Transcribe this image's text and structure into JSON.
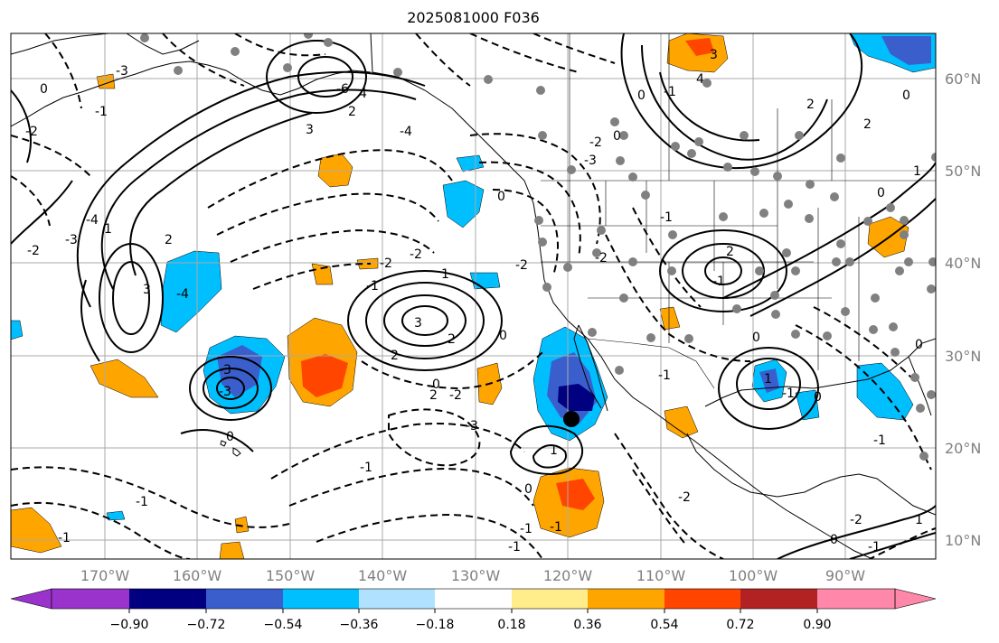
{
  "title": "2025081000 F036",
  "map": {
    "lon_labels": [
      "170°W",
      "160°W",
      "150°W",
      "140°W",
      "130°W",
      "120°W",
      "110°W",
      "100°W",
      "90°W"
    ],
    "lat_labels": [
      "60°N",
      "50°N",
      "40°N",
      "30°N",
      "20°N",
      "10°N"
    ],
    "lon_range": [
      -178,
      -78
    ],
    "lat_range": [
      8,
      65
    ],
    "gridlines": true,
    "contour_color": "#000000",
    "gray_dot_color": "#808080"
  },
  "colorbar": {
    "tick_labels": [
      "−0.90",
      "−0.72",
      "−0.54",
      "−0.36",
      "−0.18",
      "0.18",
      "0.36",
      "0.54",
      "0.72",
      "0.90"
    ],
    "colors": [
      "#9933cc",
      "#000080",
      "#3a5fcd",
      "#00bfff",
      "#b0e2ff",
      "#ffffff",
      "#ffec8b",
      "#ffa500",
      "#ff4500",
      "#b22222",
      "#ff88aa"
    ]
  },
  "contour_labels": [
    "-3",
    "0",
    "-2",
    "-1",
    "-2",
    "-4",
    "-3",
    "1",
    "2",
    "3",
    "-4",
    "4",
    "-6",
    "2",
    "3",
    "-4",
    "-2",
    "-2",
    "-1",
    "-3",
    "0",
    "2",
    "-3",
    "1",
    "2",
    "3",
    "-1",
    "-2",
    "-3",
    "2",
    "-1",
    "-2",
    "0",
    "0",
    "-1",
    "1",
    "-1",
    "-2",
    "-3",
    "0",
    "-1",
    "0",
    "3",
    "4",
    "2",
    "0",
    "1",
    "2",
    "0",
    "2",
    "-1",
    "-2",
    "0",
    "0",
    "1",
    "-1",
    "0",
    "-1",
    "-2",
    "1",
    "0",
    "-1",
    "0",
    "-1",
    "-2",
    "-1",
    "0",
    "-1",
    "-1"
  ]
}
